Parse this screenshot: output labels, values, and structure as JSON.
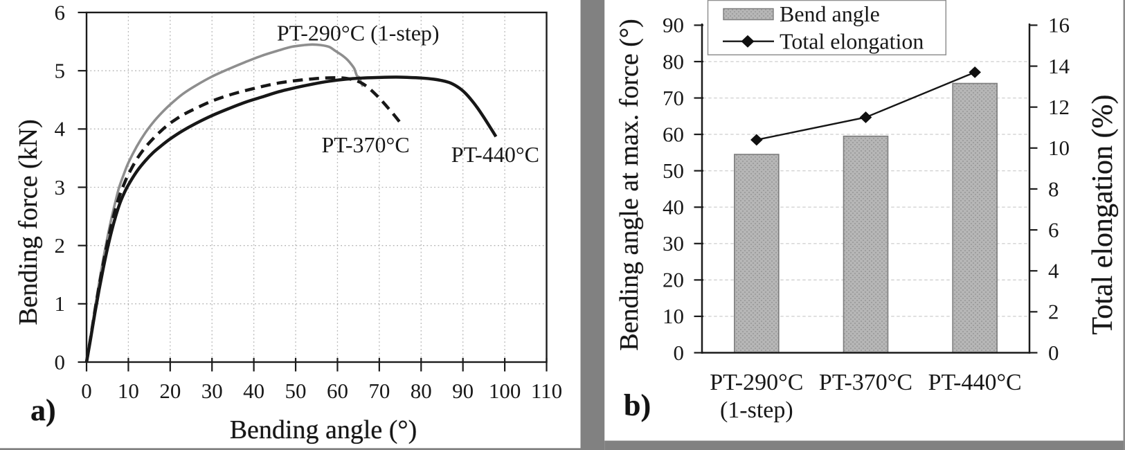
{
  "figure": {
    "panel_a_tag": "a)",
    "panel_b_tag": "b)",
    "background_color": "#ffffff",
    "frame_color": "#808080",
    "text_color": "#141414"
  },
  "chart_data": [
    {
      "id": "panel-a",
      "type": "line",
      "title": "",
      "xlabel": "Bending angle (°)",
      "ylabel": "Bending force (kN)",
      "xlim": [
        0,
        110
      ],
      "ylim": [
        0,
        6
      ],
      "xticks": [
        0,
        10,
        20,
        30,
        40,
        50,
        60,
        70,
        80,
        90,
        100,
        110
      ],
      "yticks": [
        0,
        1,
        2,
        3,
        4,
        5,
        6
      ],
      "grid": "dotted both",
      "legend_position": "none",
      "series": [
        {
          "name": "PT-290°C (1-step)",
          "style": "solid",
          "color": "#8d8d8d",
          "width": 3.6,
          "points": [
            [
              0,
              0
            ],
            [
              1,
              0.45
            ],
            [
              2,
              0.92
            ],
            [
              3,
              1.36
            ],
            [
              4,
              1.77
            ],
            [
              5,
              2.14
            ],
            [
              6,
              2.48
            ],
            [
              7,
              2.78
            ],
            [
              7.8,
              3.0
            ],
            [
              9,
              3.24
            ],
            [
              10,
              3.42
            ],
            [
              12,
              3.7
            ],
            [
              14,
              3.93
            ],
            [
              16,
              4.12
            ],
            [
              18,
              4.28
            ],
            [
              20,
              4.42
            ],
            [
              23,
              4.6
            ],
            [
              26,
              4.74
            ],
            [
              30,
              4.9
            ],
            [
              34,
              5.03
            ],
            [
              38,
              5.15
            ],
            [
              42,
              5.26
            ],
            [
              46,
              5.35
            ],
            [
              49,
              5.41
            ],
            [
              52,
              5.44
            ],
            [
              54,
              5.45
            ],
            [
              56,
              5.44
            ],
            [
              58,
              5.41
            ],
            [
              59.5,
              5.34
            ],
            [
              61,
              5.27
            ],
            [
              62.2,
              5.2
            ],
            [
              63.2,
              5.12
            ],
            [
              64,
              5.04
            ],
            [
              64.4,
              4.96
            ],
            [
              64.7,
              4.91
            ],
            [
              65.3,
              4.88
            ],
            [
              65.6,
              4.8
            ],
            [
              66.1,
              4.73
            ]
          ]
        },
        {
          "name": "PT-370°C",
          "style": "dashed",
          "color": "#151515",
          "width": 4.5,
          "points": [
            [
              0,
              0
            ],
            [
              1,
              0.43
            ],
            [
              2,
              0.88
            ],
            [
              3,
              1.3
            ],
            [
              4,
              1.69
            ],
            [
              5,
              2.05
            ],
            [
              6,
              2.37
            ],
            [
              7,
              2.65
            ],
            [
              8,
              2.88
            ],
            [
              9,
              3.06
            ],
            [
              10,
              3.22
            ],
            [
              12,
              3.48
            ],
            [
              14,
              3.68
            ],
            [
              16,
              3.84
            ],
            [
              18,
              3.98
            ],
            [
              20,
              4.1
            ],
            [
              23,
              4.24
            ],
            [
              26,
              4.35
            ],
            [
              30,
              4.48
            ],
            [
              34,
              4.58
            ],
            [
              38,
              4.66
            ],
            [
              42,
              4.73
            ],
            [
              46,
              4.79
            ],
            [
              50,
              4.83
            ],
            [
              54,
              4.86
            ],
            [
              57,
              4.875
            ],
            [
              60,
              4.88
            ],
            [
              62,
              4.87
            ],
            [
              64,
              4.84
            ],
            [
              66,
              4.78
            ],
            [
              68,
              4.67
            ],
            [
              70,
              4.53
            ],
            [
              72,
              4.37
            ],
            [
              74,
              4.2
            ],
            [
              75.3,
              4.08
            ]
          ]
        },
        {
          "name": "PT-440°C",
          "style": "solid",
          "color": "#151515",
          "width": 4.5,
          "points": [
            [
              0,
              0
            ],
            [
              1,
              0.41
            ],
            [
              2,
              0.84
            ],
            [
              3,
              1.24
            ],
            [
              4,
              1.61
            ],
            [
              5,
              1.95
            ],
            [
              6,
              2.25
            ],
            [
              7,
              2.51
            ],
            [
              8,
              2.73
            ],
            [
              9,
              2.9
            ],
            [
              10,
              3.04
            ],
            [
              12,
              3.27
            ],
            [
              14,
              3.45
            ],
            [
              16,
              3.6
            ],
            [
              18,
              3.72
            ],
            [
              20,
              3.83
            ],
            [
              23,
              3.97
            ],
            [
              26,
              4.09
            ],
            [
              30,
              4.23
            ],
            [
              34,
              4.35
            ],
            [
              38,
              4.46
            ],
            [
              42,
              4.55
            ],
            [
              46,
              4.64
            ],
            [
              50,
              4.71
            ],
            [
              54,
              4.77
            ],
            [
              58,
              4.82
            ],
            [
              62,
              4.855
            ],
            [
              66,
              4.875
            ],
            [
              70,
              4.885
            ],
            [
              74,
              4.89
            ],
            [
              77,
              4.885
            ],
            [
              80,
              4.875
            ],
            [
              83,
              4.855
            ],
            [
              85,
              4.83
            ],
            [
              87,
              4.79
            ],
            [
              89,
              4.71
            ],
            [
              90.5,
              4.62
            ],
            [
              92,
              4.5
            ],
            [
              93.5,
              4.36
            ],
            [
              95,
              4.2
            ],
            [
              96.5,
              4.03
            ],
            [
              97.9,
              3.87
            ]
          ]
        }
      ],
      "annotations": [
        {
          "text": "PT-290°C (1-step)",
          "x": 45.5,
          "y": 5.52
        },
        {
          "text": "PT-370°C",
          "x": 56.2,
          "y": 3.6
        },
        {
          "text": "PT-440°C",
          "x": 87.2,
          "y": 3.435
        }
      ]
    },
    {
      "id": "panel-b",
      "type": "bar+line",
      "title": "",
      "categories": [
        [
          "PT-290°C",
          "(1-step)"
        ],
        [
          "PT-370°C"
        ],
        [
          "PT-440°C"
        ]
      ],
      "series": [
        {
          "name": "Bend angle",
          "type": "bar",
          "axis": "left",
          "values": [
            54.5,
            59.5,
            74
          ]
        },
        {
          "name": "Total elongation",
          "type": "line",
          "axis": "right",
          "values": [
            10.4,
            11.5,
            13.7
          ]
        }
      ],
      "ylabel_left": "Bending angle at max. force (°)",
      "ylabel_right": "Total elongation (%)",
      "ylim_left": [
        0,
        90
      ],
      "ylim_right": [
        0,
        16
      ],
      "yticks_left": [
        0,
        10,
        20,
        30,
        40,
        50,
        60,
        70,
        80,
        90
      ],
      "yticks_right": [
        0,
        2,
        4,
        6,
        8,
        10,
        12,
        14,
        16
      ],
      "grid": "dashed horizontal",
      "legend_position": "top",
      "legend": [
        "Bend angle",
        "Total elongation"
      ],
      "bar_fill": "#b6b6b6",
      "bar_dot": "#9d9d9d",
      "bar_border": "#7c7c7c",
      "line_color": "#141414"
    }
  ]
}
